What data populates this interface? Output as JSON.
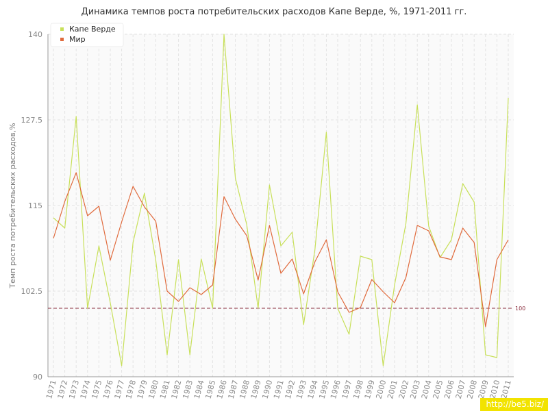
{
  "title": "Динамика темпов роста потребительских расходов Капе Верде, %, 1971-2011 гг.",
  "watermark": "http://be5.biz/",
  "colors": {
    "cape_verde": "#c8e05a",
    "world": "#e06a3c",
    "reference": "#8b2f3f",
    "grid": "#e3e3e3",
    "plot_bg": "#fafafa"
  },
  "chart_data": {
    "type": "line",
    "title": "Динамика темпов роста потребительских расходов Капе Верде, %, 1971-2011 гг.",
    "xlabel": "",
    "ylabel": "Темп роста потребительских расходов,%",
    "ylim": [
      90,
      140
    ],
    "yticks": [
      90,
      102.5,
      115,
      127.5,
      140
    ],
    "ytick_labels": [
      "90",
      "102.5",
      "115",
      "127.5",
      "140"
    ],
    "grid": true,
    "legend_position": "top-left",
    "reference_line": {
      "value": 100,
      "label": "100"
    },
    "x": [
      "1971",
      "1972",
      "1973",
      "1974",
      "1975",
      "1976",
      "1977",
      "1978",
      "1979",
      "1980",
      "1981",
      "1982",
      "1983",
      "1984",
      "1985",
      "1986",
      "1987",
      "1988",
      "1989",
      "1990",
      "1991",
      "1992",
      "1993",
      "1994",
      "1995",
      "1996",
      "1997",
      "1998",
      "1999",
      "2000",
      "2001",
      "2002",
      "2003",
      "2004",
      "2005",
      "2006",
      "2007",
      "2008",
      "2009",
      "2010",
      "2011"
    ],
    "series": [
      {
        "name": "Капе Верде",
        "color": "#c8e05a",
        "values": [
          113.2,
          111.7,
          128.0,
          100.0,
          109.1,
          100.8,
          91.6,
          109.6,
          116.8,
          107.0,
          93.2,
          107.1,
          93.2,
          107.2,
          100.0,
          140.0,
          119.0,
          112.2,
          100.0,
          118.0,
          109.1,
          111.1,
          97.6,
          108.6,
          125.7,
          100.0,
          96.2,
          107.6,
          107.1,
          91.6,
          103.4,
          112.4,
          129.7,
          112.0,
          107.4,
          110.0,
          118.2,
          115.5,
          93.2,
          92.8,
          130.7
        ]
      },
      {
        "name": "Мир",
        "color": "#e06a3c",
        "values": [
          110.2,
          115.6,
          119.8,
          113.5,
          114.9,
          107.0,
          112.6,
          117.8,
          114.8,
          112.7,
          102.5,
          101.0,
          103.0,
          102.0,
          103.4,
          116.3,
          113.0,
          110.6,
          104.1,
          112.1,
          105.1,
          107.2,
          102.1,
          106.8,
          110.0,
          102.4,
          99.4,
          100.1,
          104.2,
          102.4,
          100.8,
          104.5,
          112.1,
          111.3,
          107.5,
          107.1,
          111.7,
          109.6,
          97.3,
          107.1,
          110.0
        ]
      }
    ]
  }
}
